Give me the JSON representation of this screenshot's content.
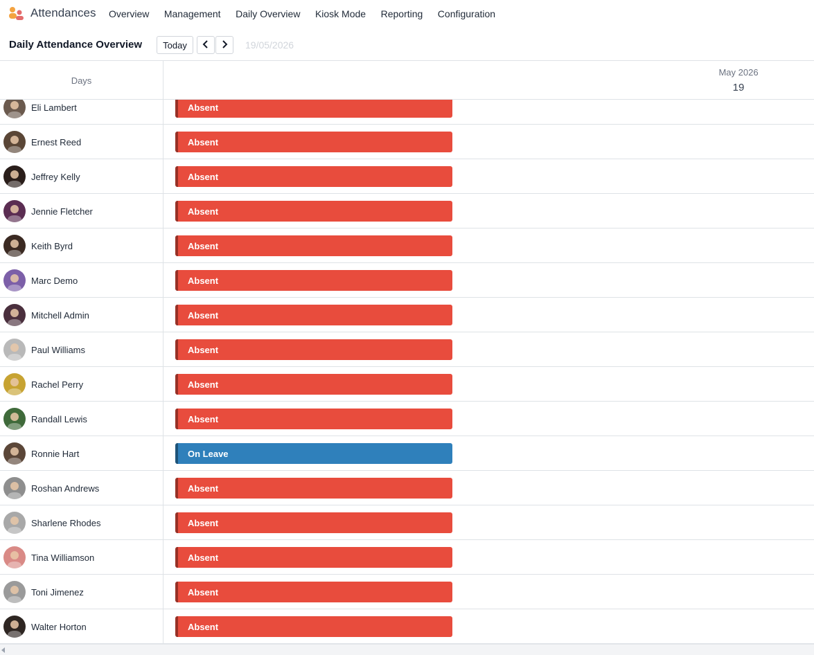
{
  "app": {
    "name": "Attendances"
  },
  "nav": [
    "Overview",
    "Management",
    "Daily Overview",
    "Kiosk Mode",
    "Reporting",
    "Configuration"
  ],
  "control": {
    "title": "Daily Attendance Overview",
    "today_label": "Today",
    "date": "19/05/2026"
  },
  "gantt": {
    "row_header": "Days",
    "month": "May 2026",
    "day": "19",
    "rows": [
      {
        "name": "Eli Lambert",
        "status": "Absent",
        "avatar_color": "#6b5a4e"
      },
      {
        "name": "Ernest Reed",
        "status": "Absent",
        "avatar_color": "#5a4636"
      },
      {
        "name": "Jeffrey Kelly",
        "status": "Absent",
        "avatar_color": "#2a1e1a"
      },
      {
        "name": "Jennie Fletcher",
        "status": "Absent",
        "avatar_color": "#5b2d52"
      },
      {
        "name": "Keith Byrd",
        "status": "Absent",
        "avatar_color": "#3b2a22"
      },
      {
        "name": "Marc Demo",
        "status": "Absent",
        "avatar_color": "#7c5fa8"
      },
      {
        "name": "Mitchell Admin",
        "status": "Absent",
        "avatar_color": "#4a2f3d"
      },
      {
        "name": "Paul Williams",
        "status": "Absent",
        "avatar_color": "#b9b9b9"
      },
      {
        "name": "Rachel Perry",
        "status": "Absent",
        "avatar_color": "#c7a332"
      },
      {
        "name": "Randall Lewis",
        "status": "Absent",
        "avatar_color": "#3f6a3a"
      },
      {
        "name": "Ronnie Hart",
        "status": "On Leave",
        "avatar_color": "#5b4638"
      },
      {
        "name": "Roshan Andrews",
        "status": "Absent",
        "avatar_color": "#8e8e8e"
      },
      {
        "name": "Sharlene Rhodes",
        "status": "Absent",
        "avatar_color": "#a8a8a8"
      },
      {
        "name": "Tina Williamson",
        "status": "Absent",
        "avatar_color": "#d98a86"
      },
      {
        "name": "Toni Jimenez",
        "status": "Absent",
        "avatar_color": "#9a9a9a"
      },
      {
        "name": "Walter Horton",
        "status": "Absent",
        "avatar_color": "#2e2622"
      }
    ]
  },
  "colors": {
    "absent": "#e84c3d",
    "on_leave": "#2f80bb",
    "accent": "#714b67"
  },
  "icons": {
    "logo": "attendances-logo-icon",
    "prev": "chevron-left-icon",
    "next": "chevron-right-icon",
    "scroll": "scroll-left-arrow-icon"
  }
}
